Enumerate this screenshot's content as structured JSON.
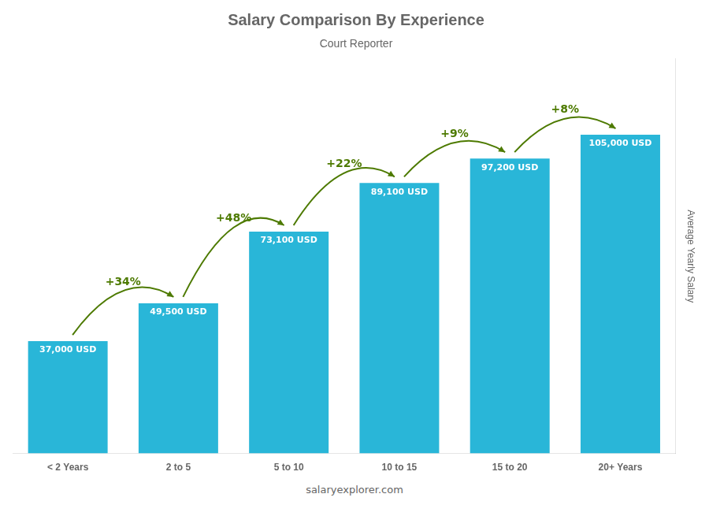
{
  "chart_data": {
    "type": "bar",
    "title": "Salary Comparison By Experience",
    "subtitle": "Court Reporter",
    "ylabel": "Average Yearly Salary",
    "categories": [
      "< 2 Years",
      "2 to 5",
      "5 to 10",
      "10 to 15",
      "15 to 20",
      "20+ Years"
    ],
    "values": [
      37000,
      49500,
      73100,
      89100,
      97200,
      105000
    ],
    "value_labels": [
      "37,000 USD",
      "49,500 USD",
      "73,100 USD",
      "89,100 USD",
      "97,200 USD",
      "105,000 USD"
    ],
    "data_labels": true,
    "color": "#29b6d8",
    "ylim": [
      0,
      130000
    ],
    "tick_labels": "x",
    "grid": false,
    "annotations": [
      "+34%",
      "+48%",
      "+22%",
      "+9%",
      "+8%"
    ],
    "footer": "salaryexplorer.com"
  }
}
